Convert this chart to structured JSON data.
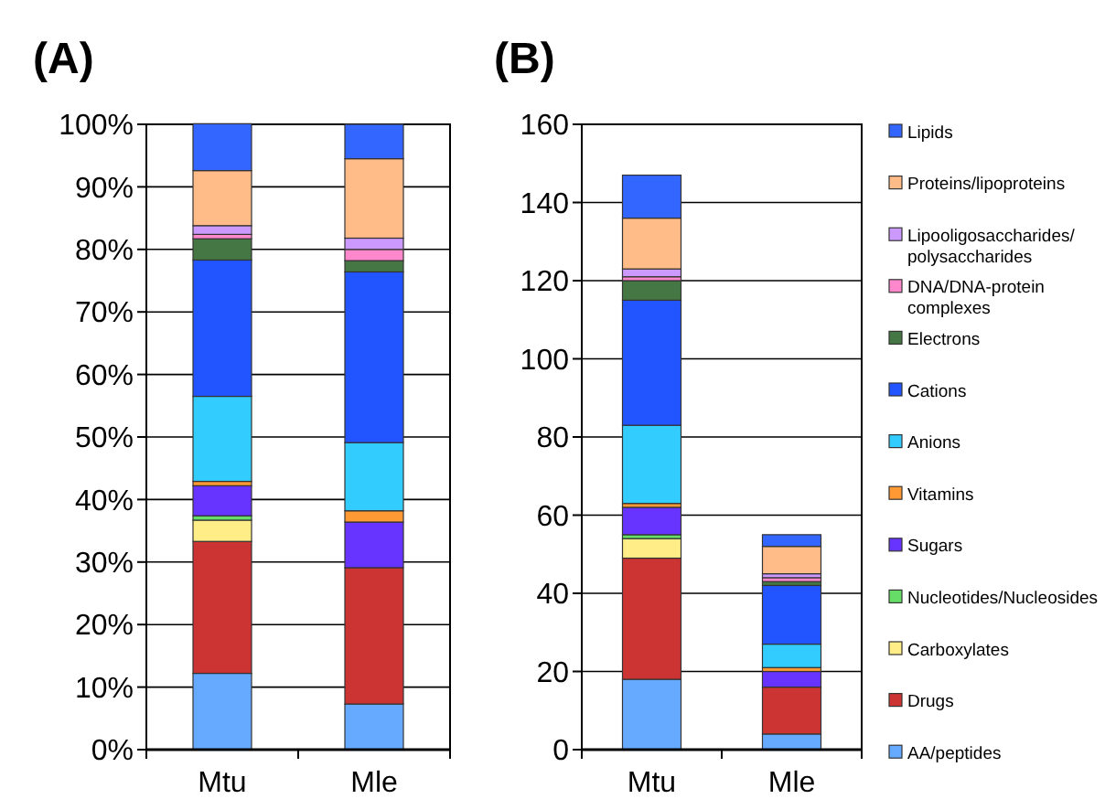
{
  "chart_data": [
    {
      "type": "bar",
      "title": "(A)",
      "categories": [
        "Mtu",
        "Mle"
      ],
      "stacked": true,
      "grid": "y",
      "ylim": [
        0,
        100
      ],
      "yticks": [
        {
          "value": 0,
          "label": "0%"
        },
        {
          "value": 10,
          "label": "10%"
        },
        {
          "value": 20,
          "label": "20%"
        },
        {
          "value": 30,
          "label": "30%"
        },
        {
          "value": 40,
          "label": "40%"
        },
        {
          "value": 50,
          "label": "50%"
        },
        {
          "value": 60,
          "label": "60%"
        },
        {
          "value": 70,
          "label": "70%"
        },
        {
          "value": 80,
          "label": "80%"
        },
        {
          "value": 90,
          "label": "90%"
        },
        {
          "value": 100,
          "label": "100%"
        }
      ],
      "series": [
        {
          "color": "#66aaff",
          "values": [
            12.2,
            7.3
          ]
        },
        {
          "color": "#cc3333",
          "values": [
            21.1,
            21.8
          ]
        },
        {
          "color": "#ffee88",
          "values": [
            3.4,
            0
          ]
        },
        {
          "color": "#66dd66",
          "values": [
            0.7,
            0
          ]
        },
        {
          "color": "#6633ff",
          "values": [
            4.8,
            7.3
          ]
        },
        {
          "color": "#ff9933",
          "values": [
            0.7,
            1.8
          ]
        },
        {
          "color": "#33ccff",
          "values": [
            13.6,
            10.9
          ]
        },
        {
          "color": "#2255ff",
          "values": [
            21.8,
            27.3
          ]
        },
        {
          "color": "#447744",
          "values": [
            3.4,
            1.8
          ]
        },
        {
          "color": "#ff88cc",
          "values": [
            0.7,
            1.8
          ]
        },
        {
          "color": "#cc99ff",
          "values": [
            1.4,
            1.8
          ]
        },
        {
          "color": "#ffbb88",
          "values": [
            8.8,
            12.7
          ]
        },
        {
          "color": "#3366ff",
          "values": [
            7.5,
            5.5
          ]
        }
      ]
    },
    {
      "type": "bar",
      "title": "(B)",
      "categories": [
        "Mtu",
        "Mle"
      ],
      "stacked": true,
      "grid": "y",
      "ylim": [
        0,
        160
      ],
      "yticks": [
        0,
        20,
        40,
        60,
        80,
        100,
        120,
        140,
        160
      ],
      "legend": "right",
      "series": [
        {
          "name": "AA/peptides",
          "color": "#66aaff",
          "values": [
            18,
            4
          ]
        },
        {
          "name": "Drugs",
          "color": "#cc3333",
          "values": [
            31,
            12
          ]
        },
        {
          "name": "Carboxylates",
          "color": "#ffee88",
          "values": [
            5,
            0
          ]
        },
        {
          "name": "Nucleotides/Nucleosides",
          "color": "#66dd66",
          "values": [
            1,
            0
          ]
        },
        {
          "name": "Sugars",
          "color": "#6633ff",
          "values": [
            7,
            4
          ]
        },
        {
          "name": "Vitamins",
          "color": "#ff9933",
          "values": [
            1,
            1
          ]
        },
        {
          "name": "Anions",
          "color": "#33ccff",
          "values": [
            20,
            6
          ]
        },
        {
          "name": "Cations",
          "color": "#2255ff",
          "values": [
            32,
            15
          ]
        },
        {
          "name": "Electrons",
          "color": "#447744",
          "values": [
            5,
            1
          ]
        },
        {
          "name": "DNA/DNA-protein complexes",
          "color": "#ff88cc",
          "values": [
            1,
            1
          ]
        },
        {
          "name": "Lipooligosaccharides/ polysaccharides",
          "color": "#cc99ff",
          "values": [
            2,
            1
          ]
        },
        {
          "name": "Proteins/lipoproteins",
          "color": "#ffbb88",
          "values": [
            13,
            7
          ]
        },
        {
          "name": "Lipids",
          "color": "#3366ff",
          "values": [
            11,
            3
          ]
        }
      ]
    }
  ]
}
